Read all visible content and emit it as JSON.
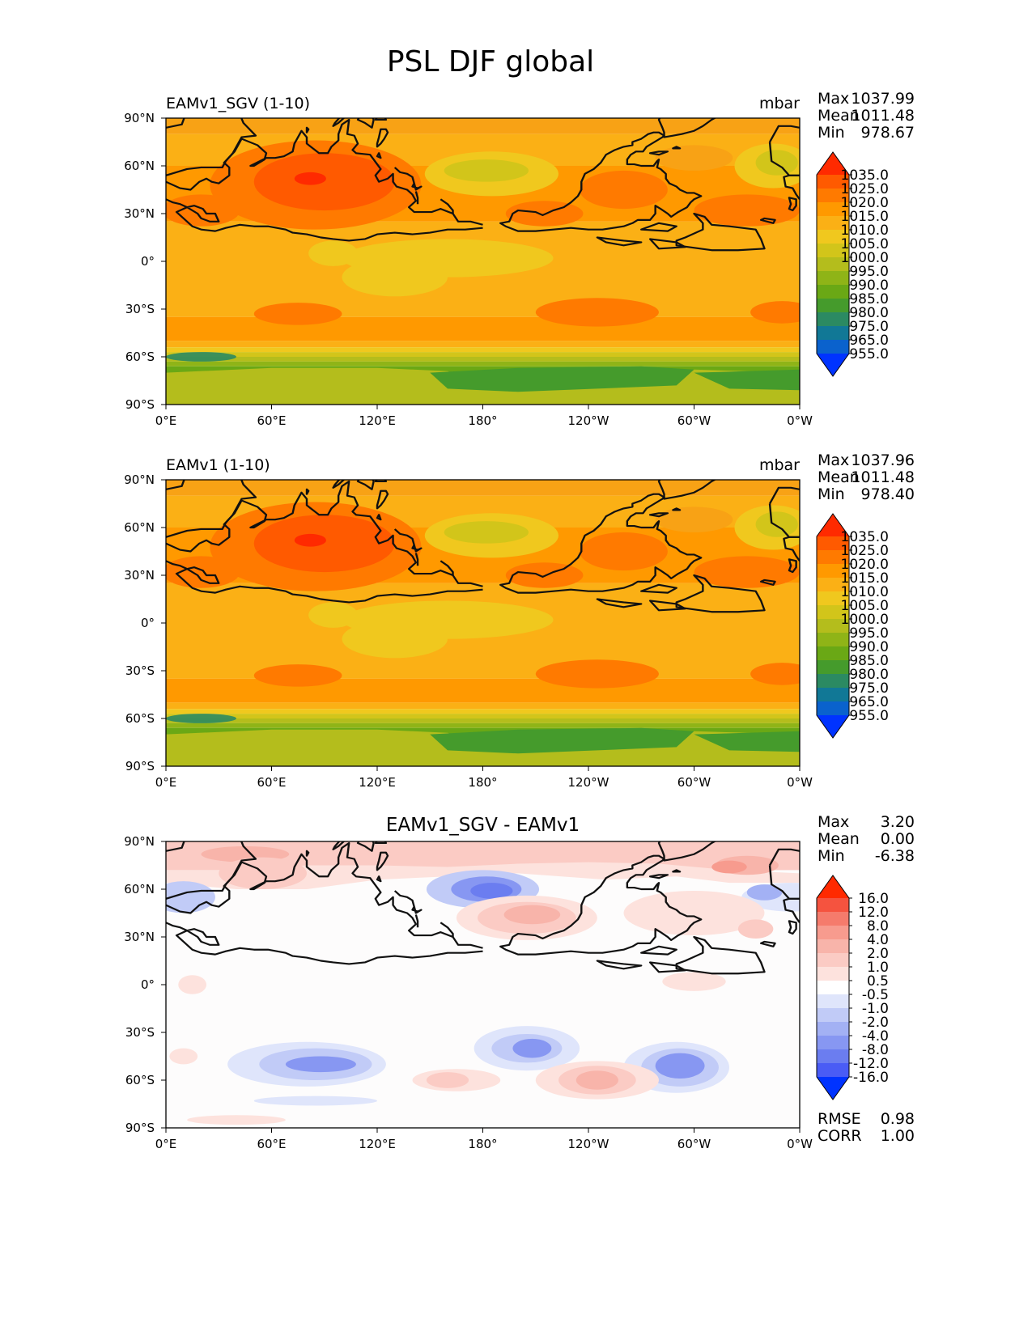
{
  "figure_title": "PSL DJF global",
  "chart_data": [
    {
      "type": "heatmap",
      "title": "EAMv1_SGV (1-10)",
      "units": "mbar",
      "stats": {
        "max_label": "Max",
        "max": "1037.99",
        "mean_label": "Mean",
        "mean": "1011.48",
        "min_label": "Min",
        "min": "978.67"
      },
      "x_ticks": [
        "0°E",
        "60°E",
        "120°E",
        "180°",
        "120°W",
        "60°W",
        "0°W"
      ],
      "y_ticks": [
        "90°N",
        "60°N",
        "30°N",
        "0°",
        "30°S",
        "60°S",
        "90°S"
      ],
      "xlim": [
        0,
        360
      ],
      "ylim": [
        -90,
        90
      ],
      "colorbar": {
        "levels": [
          "1035.0",
          "1025.0",
          "1020.0",
          "1015.0",
          "1010.0",
          "1005.0",
          "1000.0",
          "995.0",
          "990.0",
          "985.0",
          "980.0",
          "975.0",
          "965.0",
          "955.0"
        ],
        "colors": [
          "#ff2a00",
          "#ff5a00",
          "#ff7a00",
          "#ff9900",
          "#fbb015",
          "#f0c81e",
          "#d2c51a",
          "#b4bd1c",
          "#8fb417",
          "#6aa815",
          "#459b2c",
          "#2b8a62",
          "#117896",
          "#0a62cd",
          "#0033ff"
        ]
      }
    },
    {
      "type": "heatmap",
      "title": "EAMv1 (1-10)",
      "units": "mbar",
      "stats": {
        "max_label": "Max",
        "max": "1037.96",
        "mean_label": "Mean",
        "mean": "1011.48",
        "min_label": "Min",
        "min": "978.40"
      },
      "x_ticks": [
        "0°E",
        "60°E",
        "120°E",
        "180°",
        "120°W",
        "60°W",
        "0°W"
      ],
      "y_ticks": [
        "90°N",
        "60°N",
        "30°N",
        "0°",
        "30°S",
        "60°S",
        "90°S"
      ],
      "xlim": [
        0,
        360
      ],
      "ylim": [
        -90,
        90
      ],
      "colorbar": {
        "levels": [
          "1035.0",
          "1025.0",
          "1020.0",
          "1015.0",
          "1010.0",
          "1005.0",
          "1000.0",
          "995.0",
          "990.0",
          "985.0",
          "980.0",
          "975.0",
          "965.0",
          "955.0"
        ],
        "colors": [
          "#ff2a00",
          "#ff5a00",
          "#ff7a00",
          "#ff9900",
          "#fbb015",
          "#f0c81e",
          "#d2c51a",
          "#b4bd1c",
          "#8fb417",
          "#6aa815",
          "#459b2c",
          "#2b8a62",
          "#117896",
          "#0a62cd",
          "#0033ff"
        ]
      }
    },
    {
      "type": "heatmap",
      "title": "EAMv1_SGV - EAMv1",
      "units": "",
      "stats": {
        "max_label": "Max",
        "max": "3.20",
        "mean_label": "Mean",
        "mean": "0.00",
        "min_label": "Min",
        "min": "-6.38"
      },
      "metrics": {
        "rmse_label": "RMSE",
        "rmse": "0.98",
        "corr_label": "CORR",
        "corr": "1.00"
      },
      "x_ticks": [
        "0°E",
        "60°E",
        "120°E",
        "180°",
        "120°W",
        "60°W",
        "0°W"
      ],
      "y_ticks": [
        "90°N",
        "60°N",
        "30°N",
        "0°",
        "30°S",
        "60°S",
        "90°S"
      ],
      "xlim": [
        0,
        360
      ],
      "ylim": [
        -90,
        90
      ],
      "colorbar": {
        "levels": [
          "16.0",
          "12.0",
          "8.0",
          "4.0",
          "2.0",
          "1.0",
          "0.5",
          "-0.5",
          "-1.0",
          "-2.0",
          "-4.0",
          "-8.0",
          "-12.0",
          "-16.0"
        ],
        "colors": [
          "#ff2a00",
          "#f5533f",
          "#f57b6c",
          "#f79b8e",
          "#f8b4aa",
          "#fbcbc4",
          "#fde2dd",
          "#ffffff",
          "#dfe5fb",
          "#c1cbf7",
          "#a3b1f4",
          "#8797f2",
          "#6b7df0",
          "#4a5cf5",
          "#0033ff"
        ]
      }
    }
  ]
}
